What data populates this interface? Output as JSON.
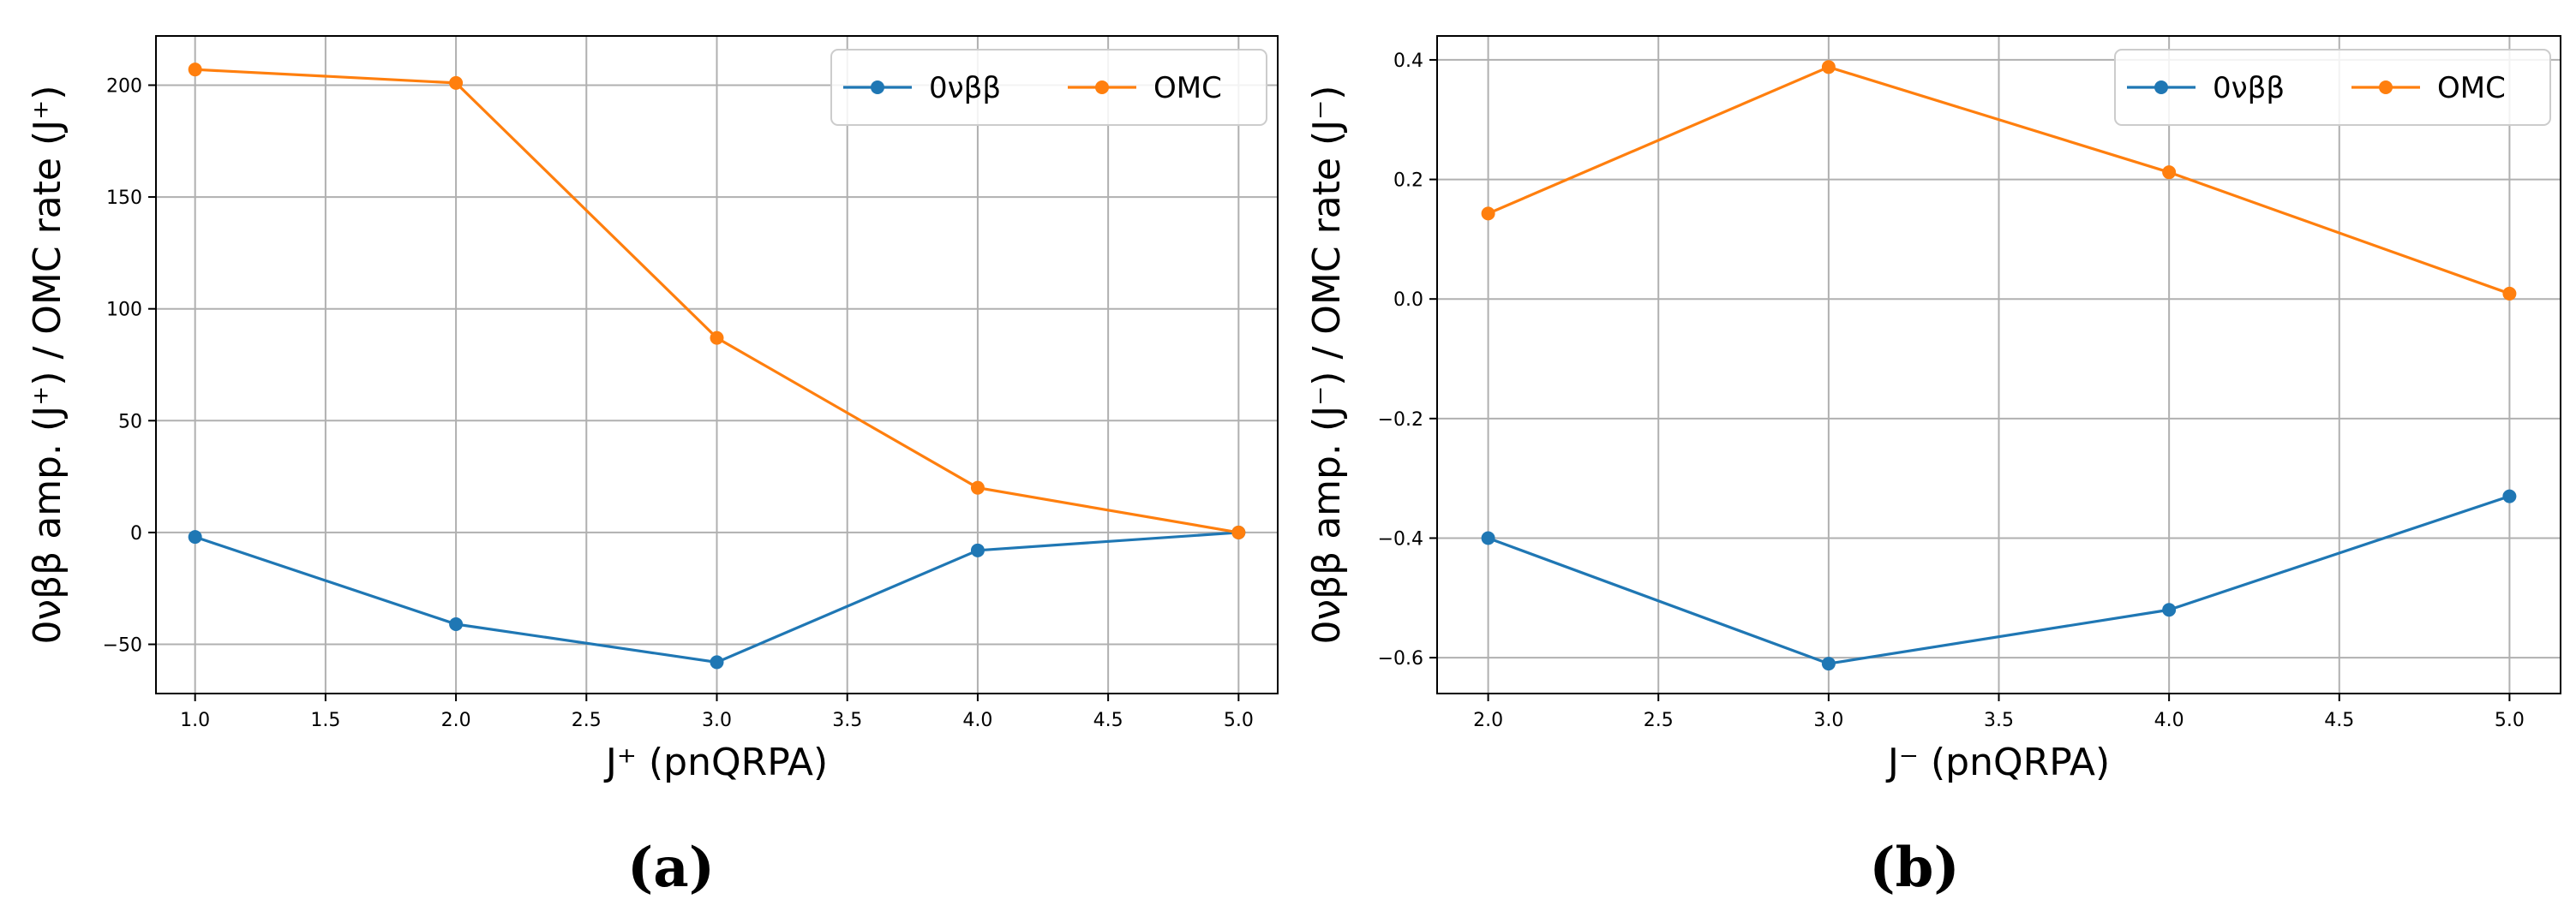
{
  "colors": {
    "series_blue": "#1f77b4",
    "series_orange": "#ff7f0e",
    "grid": "#b0b0b0"
  },
  "chart_data": [
    {
      "type": "line",
      "panel_caption": "(a)",
      "xlabel": "J⁺ (pnQRPA)",
      "ylabel": "0νββ amp. (J⁺) / OMC rate (J⁺)",
      "xlim": [
        0.85,
        5.15
      ],
      "ylim": [
        -72,
        222
      ],
      "xticks": [
        1.0,
        1.5,
        2.0,
        2.5,
        3.0,
        3.5,
        4.0,
        4.5,
        5.0
      ],
      "xtick_labels": [
        "1.0",
        "1.5",
        "2.0",
        "2.5",
        "3.0",
        "3.5",
        "4.0",
        "4.5",
        "5.0"
      ],
      "yticks": [
        -50,
        0,
        50,
        100,
        150,
        200
      ],
      "ytick_labels": [
        "−50",
        "0",
        "50",
        "100",
        "150",
        "200"
      ],
      "grid": true,
      "legend_position": "top-right",
      "series": [
        {
          "name": "0νββ",
          "color": "#1f77b4",
          "x": [
            1,
            2,
            3,
            4,
            5
          ],
          "y": [
            -2,
            -41,
            -58,
            -8,
            0
          ]
        },
        {
          "name": "OMC",
          "color": "#ff7f0e",
          "x": [
            1,
            2,
            3,
            4,
            5
          ],
          "y": [
            207,
            201,
            87,
            20,
            0
          ]
        }
      ]
    },
    {
      "type": "line",
      "panel_caption": "(b)",
      "xlabel": "J⁻ (pnQRPA)",
      "ylabel": "0νββ amp. (J⁻) / OMC rate (J⁻)",
      "xlim": [
        1.85,
        5.15
      ],
      "ylim": [
        -0.66,
        0.44
      ],
      "xticks": [
        2.0,
        2.5,
        3.0,
        3.5,
        4.0,
        4.5,
        5.0
      ],
      "xtick_labels": [
        "2.0",
        "2.5",
        "3.0",
        "3.5",
        "4.0",
        "4.5",
        "5.0"
      ],
      "yticks": [
        -0.6,
        -0.4,
        -0.2,
        0.0,
        0.2,
        0.4
      ],
      "ytick_labels": [
        "−0.6",
        "−0.4",
        "−0.2",
        "0.0",
        "0.2",
        "0.4"
      ],
      "grid": true,
      "legend_position": "top-right",
      "series": [
        {
          "name": "0νββ",
          "color": "#1f77b4",
          "x": [
            2,
            3,
            4,
            5
          ],
          "y": [
            -0.4,
            -0.61,
            -0.52,
            -0.33
          ]
        },
        {
          "name": "OMC",
          "color": "#ff7f0e",
          "x": [
            2,
            3,
            4,
            5
          ],
          "y": [
            0.143,
            0.388,
            0.212,
            0.009
          ]
        }
      ]
    }
  ]
}
